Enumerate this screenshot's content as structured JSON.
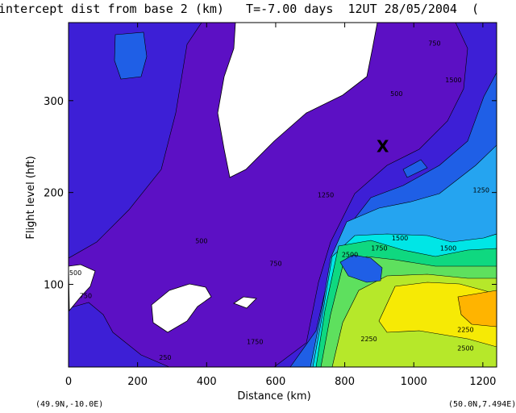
{
  "title": "intercept dist from base 2 (km)   T=-7.00 days  12UT 28/05/2004  (",
  "corner_left": "(49.9N,-10.0E)",
  "corner_right": "(50.0N,7.494E)",
  "chart_data": {
    "type": "heatmap",
    "title": "intercept dist from base 2 (km)   T=-7.00 days  12UT 28/05/2004  (",
    "xlabel": "Distance  (km)",
    "ylabel": "Flight level  (hft)",
    "xlim": [
      0,
      1240
    ],
    "ylim": [
      10,
      385
    ],
    "xticks": [
      0,
      200,
      400,
      600,
      800,
      1000,
      1200
    ],
    "yticks": [
      100,
      200,
      300
    ],
    "marker": {
      "symbol": "X",
      "x": 910,
      "y": 250
    },
    "contour_labels": [
      {
        "text": "500",
        "x": 950,
        "y": 305
      },
      {
        "text": "750",
        "x": 1060,
        "y": 360
      },
      {
        "text": "1500",
        "x": 1115,
        "y": 320
      },
      {
        "text": "500",
        "x": 20,
        "y": 110
      },
      {
        "text": "750",
        "x": 50,
        "y": 85
      },
      {
        "text": "500",
        "x": 385,
        "y": 145
      },
      {
        "text": "750",
        "x": 600,
        "y": 120
      },
      {
        "text": "1250",
        "x": 745,
        "y": 195
      },
      {
        "text": "2500",
        "x": 815,
        "y": 130
      },
      {
        "text": "1750",
        "x": 900,
        "y": 137
      },
      {
        "text": "1500",
        "x": 1100,
        "y": 137
      },
      {
        "text": "1500",
        "x": 960,
        "y": 148
      },
      {
        "text": "2250",
        "x": 870,
        "y": 38
      },
      {
        "text": "2250",
        "x": 1150,
        "y": 48
      },
      {
        "text": "2500",
        "x": 1150,
        "y": 28
      },
      {
        "text": "250",
        "x": 280,
        "y": 18
      },
      {
        "text": "1750",
        "x": 540,
        "y": 35
      },
      {
        "text": "1250",
        "x": 1195,
        "y": 200
      }
    ]
  }
}
